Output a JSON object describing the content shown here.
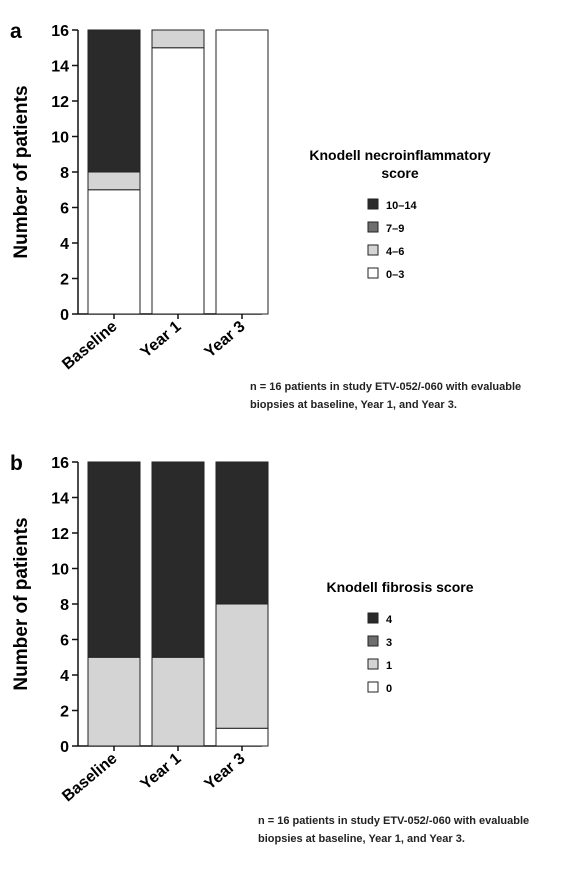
{
  "chart_data": [
    {
      "type": "bar",
      "stacked": true,
      "panel_label": "a",
      "categories": [
        "Baseline",
        "Year 1",
        "Year 3"
      ],
      "ylabel": "Number of patients",
      "ylim": [
        0,
        16
      ],
      "yticks": [
        0,
        2,
        4,
        6,
        8,
        10,
        12,
        14,
        16
      ],
      "legend_title": "Knodell necroinflammatory score",
      "legend_title_lines": [
        "Knodell necroinflammatory",
        "score"
      ],
      "legend_position": "right",
      "series": [
        {
          "name": "0–3",
          "values": [
            7,
            15,
            16
          ],
          "color": "#ffffff"
        },
        {
          "name": "4–6",
          "values": [
            1,
            1,
            0
          ],
          "color": "#d4d4d4"
        },
        {
          "name": "7–9",
          "values": [
            0,
            0,
            0
          ],
          "color": "#6e6e6e"
        },
        {
          "name": "10–14",
          "values": [
            8,
            0,
            0
          ],
          "color": "#2a2a2a"
        }
      ],
      "note_lines": [
        "n = 16 patients in study ETV-052/-060 with evaluable",
        "biopsies at baseline, Year 1, and Year 3."
      ]
    },
    {
      "type": "bar",
      "stacked": true,
      "panel_label": "b",
      "categories": [
        "Baseline",
        "Year 1",
        "Year 3"
      ],
      "ylabel": "Number of patients",
      "ylim": [
        0,
        16
      ],
      "yticks": [
        0,
        2,
        4,
        6,
        8,
        10,
        12,
        14,
        16
      ],
      "legend_title": "Knodell fibrosis score",
      "legend_title_lines": [
        "Knodell fibrosis score"
      ],
      "legend_position": "right",
      "series": [
        {
          "name": "0",
          "values": [
            0,
            0,
            1
          ],
          "color": "#ffffff"
        },
        {
          "name": "1",
          "values": [
            5,
            5,
            7
          ],
          "color": "#d4d4d4"
        },
        {
          "name": "3",
          "values": [
            0,
            0,
            0
          ],
          "color": "#6e6e6e"
        },
        {
          "name": "4",
          "values": [
            11,
            11,
            8
          ],
          "color": "#2a2a2a"
        }
      ],
      "note_lines": [
        "n = 16 patients in study ETV-052/-060 with evaluable",
        "biopsies at baseline, Year 1, and Year 3."
      ]
    }
  ]
}
